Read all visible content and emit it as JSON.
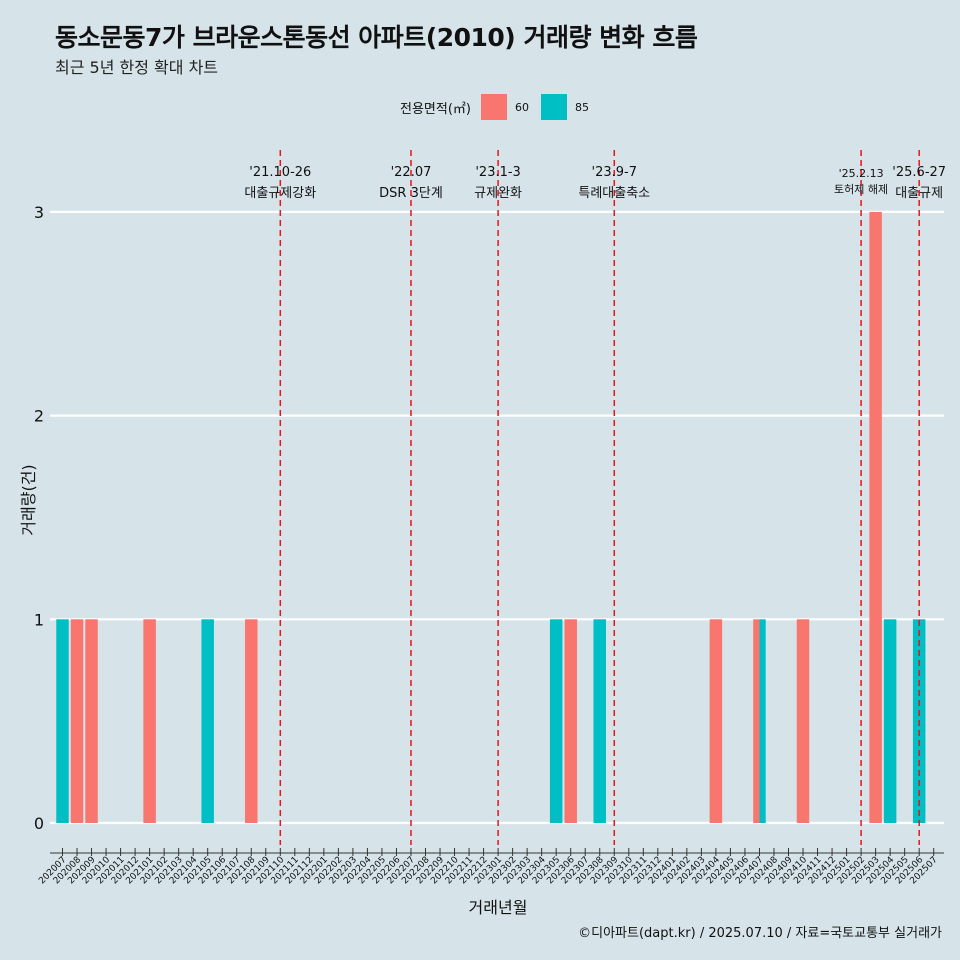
{
  "title": "동소문동7가 브라운스톤동선 아파트(2010) 거래량 변화 흐름",
  "subtitle": "최근 5년 한정 확대 차트",
  "caption": "©디아파트(dapt.kr) / 2025.07.10 / 자료=국토교통부 실거래가",
  "legend": {
    "title": "전용면적(㎡)",
    "items": [
      {
        "label": "60",
        "color": "#f8766d"
      },
      {
        "label": "85",
        "color": "#00bfc4"
      }
    ]
  },
  "chart_data": {
    "type": "bar",
    "xlabel": "거래년월",
    "ylabel": "거래량(건)",
    "ylim": [
      0,
      3
    ],
    "yticks": [
      0,
      1,
      2,
      3
    ],
    "categories": [
      "202007",
      "202008",
      "202009",
      "202010",
      "202011",
      "202012",
      "202101",
      "202102",
      "202103",
      "202104",
      "202105",
      "202106",
      "202107",
      "202108",
      "202109",
      "202110",
      "202111",
      "202112",
      "202201",
      "202202",
      "202203",
      "202204",
      "202205",
      "202206",
      "202207",
      "202208",
      "202209",
      "202210",
      "202211",
      "202212",
      "202301",
      "202302",
      "202303",
      "202304",
      "202305",
      "202306",
      "202307",
      "202308",
      "202309",
      "202310",
      "202311",
      "202312",
      "202401",
      "202402",
      "202403",
      "202404",
      "202405",
      "202406",
      "202407",
      "202408",
      "202409",
      "202410",
      "202411",
      "202412",
      "202501",
      "202502",
      "202503",
      "202504",
      "202505",
      "202506",
      "202507"
    ],
    "series": [
      {
        "name": "60",
        "color": "#f8766d",
        "points": [
          {
            "x": "202008",
            "y": 1
          },
          {
            "x": "202009",
            "y": 1
          },
          {
            "x": "202101",
            "y": 1
          },
          {
            "x": "202108",
            "y": 1
          },
          {
            "x": "202306",
            "y": 1
          },
          {
            "x": "202404",
            "y": 1
          },
          {
            "x": "202407",
            "y": 1
          },
          {
            "x": "202410",
            "y": 1
          },
          {
            "x": "202503",
            "y": 3
          }
        ]
      },
      {
        "name": "85",
        "color": "#00bfc4",
        "points": [
          {
            "x": "202007",
            "y": 1
          },
          {
            "x": "202105",
            "y": 1
          },
          {
            "x": "202305",
            "y": 1
          },
          {
            "x": "202308",
            "y": 1
          },
          {
            "x": "202407",
            "y": 1
          },
          {
            "x": "202504",
            "y": 1
          },
          {
            "x": "202506",
            "y": 1
          }
        ]
      }
    ],
    "events": [
      {
        "x": "202110",
        "date": "'21.10-26",
        "label": "대출규제강화"
      },
      {
        "x": "202207",
        "date": "'22.07",
        "label": "DSR 3단계"
      },
      {
        "x": "202301",
        "date": "'23.1-3",
        "label": "규제완화"
      },
      {
        "x": "202309",
        "date": "'23.9-7",
        "label": "특례대출축소"
      },
      {
        "x": "202502",
        "date": "'25.2.13",
        "label": "토허제 해제"
      },
      {
        "x": "202506",
        "date": "'25.6-27",
        "label": "대출규제"
      }
    ]
  }
}
